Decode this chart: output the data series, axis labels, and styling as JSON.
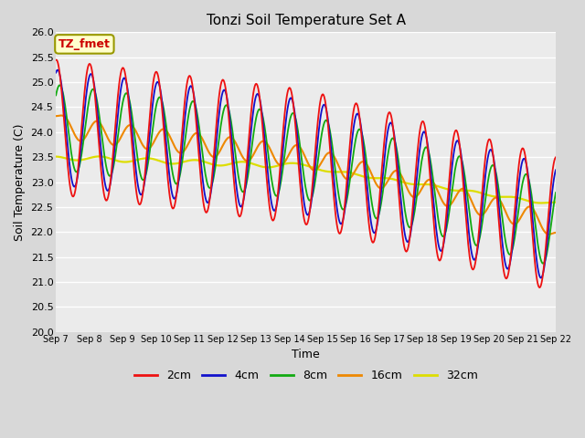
{
  "title": "Tonzi Soil Temperature Set A",
  "xlabel": "Time",
  "ylabel": "Soil Temperature (C)",
  "ylim": [
    20.0,
    26.0
  ],
  "yticks": [
    20.0,
    20.5,
    21.0,
    21.5,
    22.0,
    22.5,
    23.0,
    23.5,
    24.0,
    24.5,
    25.0,
    25.5,
    26.0
  ],
  "xtick_labels": [
    "Sep 7",
    "Sep 8",
    "Sep 9",
    "Sep 10",
    "Sep 11",
    "Sep 12",
    "Sep 13",
    "Sep 14",
    "Sep 15",
    "Sep 16",
    "Sep 17",
    "Sep 18",
    "Sep 19",
    "Sep 20",
    "Sep 21",
    "Sep 22"
  ],
  "line_colors": {
    "2cm": "#ee1111",
    "4cm": "#1111cc",
    "8cm": "#11aa11",
    "16cm": "#ee8800",
    "32cm": "#dddd00"
  },
  "legend_label_box": "TZ_fmet",
  "legend_box_bg": "#ffffcc",
  "legend_box_border": "#999900",
  "legend_box_text": "#cc0000",
  "plot_bg": "#ebebeb",
  "fig_bg": "#d8d8d8",
  "grid_color": "#ffffff"
}
